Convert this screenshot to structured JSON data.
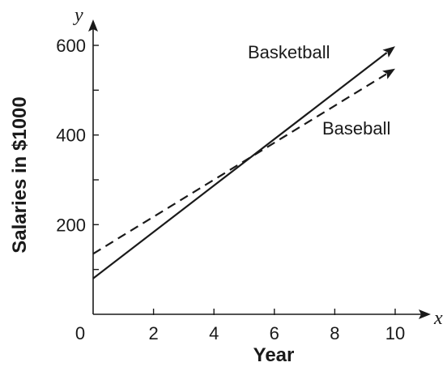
{
  "chart_data": {
    "type": "line",
    "xlabel": "Year",
    "ylabel": "Salaries in $1000",
    "x_axis_var": "x",
    "y_axis_var": "y",
    "xlim": [
      0,
      10
    ],
    "ylim": [
      0,
      600
    ],
    "x_ticks": [
      0,
      2,
      4,
      6,
      8,
      10
    ],
    "x_tick_labels": [
      "0",
      "2",
      "4",
      "6",
      "8",
      "10"
    ],
    "y_ticks": [
      100,
      200,
      300,
      400,
      500,
      600
    ],
    "y_tick_labels": [
      "",
      "200",
      "",
      "400",
      "",
      "600"
    ],
    "grid": false,
    "legend": "none",
    "series": [
      {
        "name": "Basketball",
        "style": "solid",
        "color": "#1a1a1a",
        "x": [
          0,
          10
        ],
        "y": [
          80,
          598
        ]
      },
      {
        "name": "Baseball",
        "style": "dashed",
        "color": "#1a1a1a",
        "x": [
          0,
          10
        ],
        "y": [
          135,
          548
        ]
      }
    ]
  }
}
